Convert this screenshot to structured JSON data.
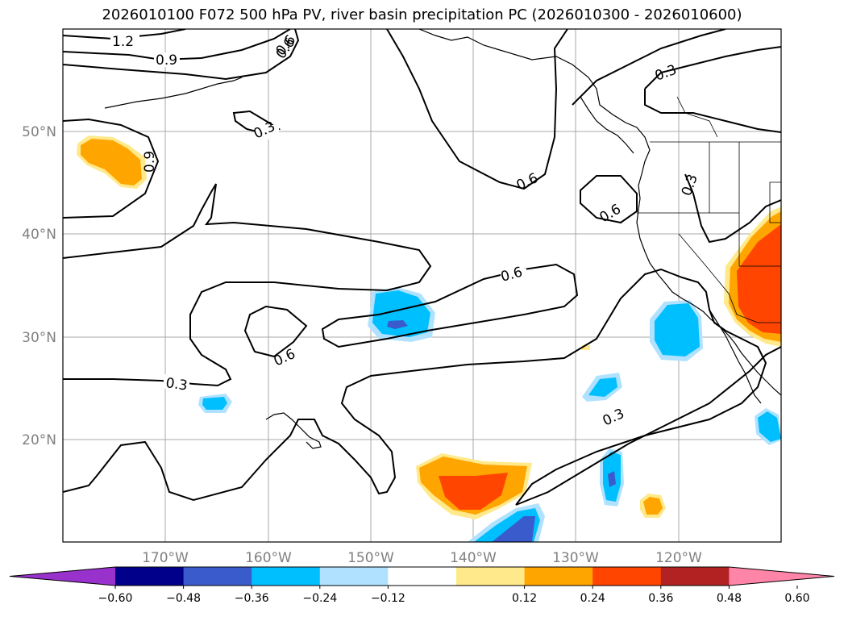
{
  "title": "2026010100 F072 500 hPa PV, river basin precipitation PC (2026010300 - 2026010600)",
  "map": {
    "lat_labels": [
      "50°N",
      "40°N",
      "30°N",
      "20°N"
    ],
    "lon_labels": [
      "170°W",
      "160°W",
      "150°W",
      "140°W",
      "130°W",
      "120°W"
    ],
    "extent": {
      "lon_min": -180,
      "lon_max": -110,
      "lat_min": 10,
      "lat_max": 60
    }
  },
  "contour_labels": [
    "1.2",
    "0.9",
    "0.6",
    "0.3",
    "0.6",
    "0.9",
    "0.6",
    "0.6",
    "0.3",
    "0.3",
    "0.6",
    "0.6",
    "0.3",
    "0.3"
  ],
  "colorbar": {
    "ticks": [
      "−0.60",
      "−0.48",
      "−0.36",
      "−0.24",
      "−0.12",
      "0.12",
      "0.24",
      "0.36",
      "0.48",
      "0.60"
    ],
    "colors": [
      "#9932cc",
      "#00008b",
      "#3a5bcc",
      "#00bfff",
      "#b0e2ff",
      "#ffffff",
      "#ffe98a",
      "#ffa500",
      "#ff4500",
      "#b22222",
      "#ff85a8"
    ]
  }
}
